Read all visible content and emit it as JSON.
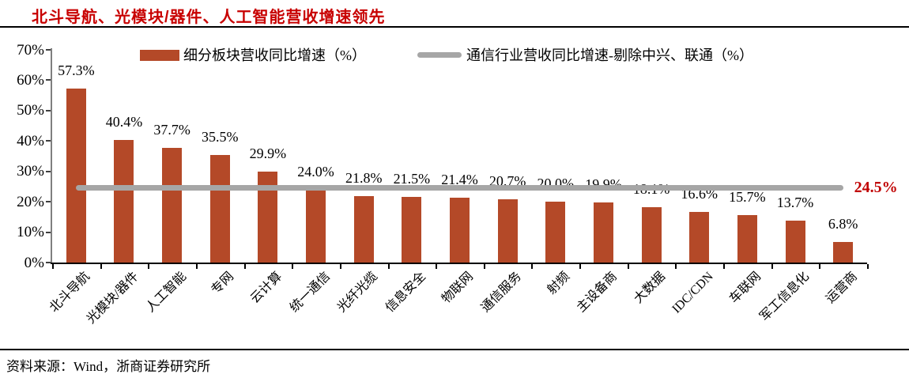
{
  "header": {
    "title": "北斗导航、光模块/器件、人工智能营收增速领先"
  },
  "footer": {
    "source": "资料来源：Wind，浙商证券研究所"
  },
  "legend": {
    "bar_series_label": "细分板块营收同比增速（%）",
    "line_series_label": "通信行业营收同比增速-剔除中兴、联通（%）"
  },
  "colors": {
    "bar": "#B44928",
    "benchmark_line": "#A6A6A6",
    "title_red": "#C80000",
    "benchmark_label_red": "#C00000"
  },
  "chart_data": {
    "type": "bar",
    "title": "北斗导航、光模块/器件、人工智能营收增速领先",
    "categories": [
      "北斗导航",
      "光模块/器件",
      "人工智能",
      "专网",
      "云计算",
      "统一通信",
      "光纤光缆",
      "信息安全",
      "物联网",
      "通信服务",
      "射频",
      "主设备商",
      "大数据",
      "IDC/CDN",
      "车联网",
      "军工信息化",
      "运营商"
    ],
    "series": [
      {
        "name": "细分板块营收同比增速（%）",
        "type": "bar",
        "values": [
          57.3,
          40.4,
          37.7,
          35.5,
          29.9,
          24.0,
          21.8,
          21.5,
          21.4,
          20.7,
          20.0,
          19.9,
          18.1,
          16.6,
          15.7,
          13.7,
          6.8
        ],
        "labels": [
          "57.3%",
          "40.4%",
          "37.7%",
          "35.5%",
          "29.9%",
          "24.0%",
          "21.8%",
          "21.5%",
          "21.4%",
          "20.7%",
          "20.0%",
          "19.9%",
          "18.1%",
          "16.6%",
          "15.7%",
          "13.7%",
          "6.8%"
        ]
      },
      {
        "name": "通信行业营收同比增速-剔除中兴、联通（%）",
        "type": "line",
        "value": 24.5,
        "label": "24.5%"
      }
    ],
    "ylim": [
      0,
      70
    ],
    "ytick_step": 10,
    "ytick_labels": [
      "0%",
      "10%",
      "20%",
      "30%",
      "40%",
      "50%",
      "60%",
      "70%"
    ],
    "xlabel": "",
    "ylabel": "",
    "grid": false,
    "data_labels": true,
    "legend_position": "top"
  }
}
